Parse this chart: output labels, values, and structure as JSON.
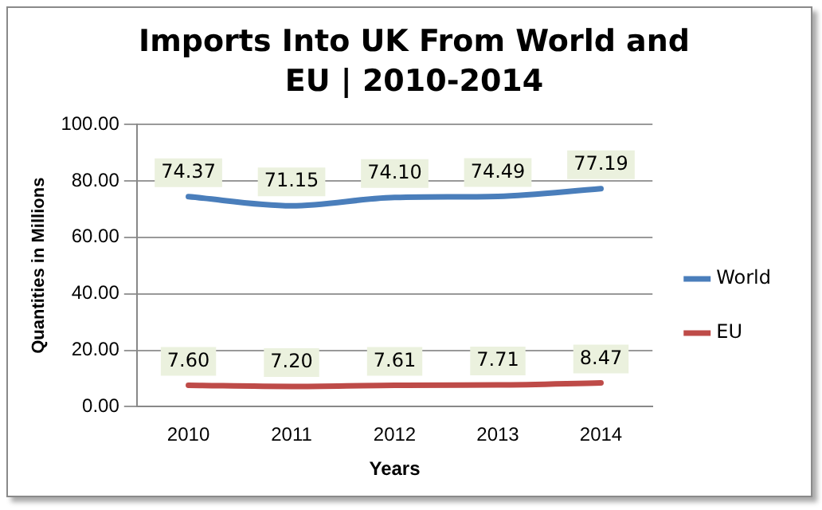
{
  "chart_data": {
    "type": "line",
    "title": "Imports Into UK From World and EU | 2010-2014",
    "xlabel": "Years",
    "ylabel": "Quantities in Millions",
    "categories": [
      "2010",
      "2011",
      "2012",
      "2013",
      "2014"
    ],
    "series": [
      {
        "name": "World",
        "color": "#4a7ebb",
        "values": [
          74.37,
          71.15,
          74.1,
          74.49,
          77.19
        ],
        "value_labels": [
          "74.37",
          "71.15",
          "74.10",
          "74.49",
          "77.19"
        ]
      },
      {
        "name": "EU",
        "color": "#be4b48",
        "values": [
          7.6,
          7.2,
          7.61,
          7.71,
          8.47
        ],
        "value_labels": [
          "7.60",
          "7.20",
          "7.61",
          "7.71",
          "8.47"
        ]
      }
    ],
    "ylim": [
      0,
      100
    ],
    "yticks": [
      {
        "value": 0,
        "label": "0.00"
      },
      {
        "value": 20,
        "label": "20.00"
      },
      {
        "value": 40,
        "label": "40.00"
      },
      {
        "value": 60,
        "label": "60.00"
      },
      {
        "value": 80,
        "label": "80.00"
      },
      {
        "value": 100,
        "label": "100.00"
      }
    ],
    "grid": "y",
    "legend": "right",
    "line_style": "solid"
  }
}
